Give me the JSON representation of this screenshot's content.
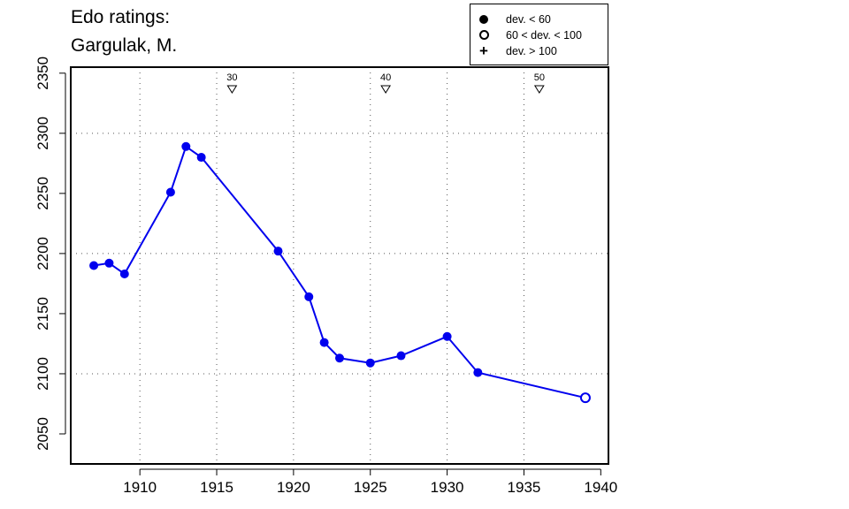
{
  "title": [
    "Edo ratings:",
    "Gargulak, M."
  ],
  "legend": [
    {
      "symbol": "filled-circle",
      "label": "dev. < 60"
    },
    {
      "symbol": "open-circle",
      "label": "60 < dev. < 100"
    },
    {
      "symbol": "plus",
      "label": "dev. > 100"
    }
  ],
  "chart_data": {
    "type": "line",
    "title": "Edo ratings: Gargulak, M.",
    "xlabel": "",
    "ylabel": "",
    "xlim": [
      1905.5,
      1940.5
    ],
    "ylim": [
      2025,
      2355
    ],
    "x_ticks": [
      1910,
      1915,
      1920,
      1925,
      1930,
      1935,
      1940
    ],
    "y_ticks": [
      2050,
      2100,
      2150,
      2200,
      2250,
      2300,
      2350
    ],
    "x_grid": [
      1910,
      1915,
      1920,
      1925,
      1930,
      1935
    ],
    "y_grid": [
      2100,
      2200,
      2300
    ],
    "grid": true,
    "line_color": "#0000ee",
    "series": [
      {
        "points": [
          {
            "x": 1907,
            "y": 2190,
            "dev": "low"
          },
          {
            "x": 1908,
            "y": 2192,
            "dev": "low"
          },
          {
            "x": 1909,
            "y": 2183,
            "dev": "low"
          },
          {
            "x": 1912,
            "y": 2251,
            "dev": "low"
          },
          {
            "x": 1913,
            "y": 2289,
            "dev": "low"
          },
          {
            "x": 1914,
            "y": 2280,
            "dev": "low"
          },
          {
            "x": 1919,
            "y": 2202,
            "dev": "low"
          },
          {
            "x": 1921,
            "y": 2164,
            "dev": "low"
          },
          {
            "x": 1922,
            "y": 2126,
            "dev": "low"
          },
          {
            "x": 1923,
            "y": 2113,
            "dev": "low"
          },
          {
            "x": 1925,
            "y": 2109,
            "dev": "low"
          },
          {
            "x": 1927,
            "y": 2115,
            "dev": "low"
          },
          {
            "x": 1930,
            "y": 2131,
            "dev": "low"
          },
          {
            "x": 1932,
            "y": 2101,
            "dev": "low"
          },
          {
            "x": 1939,
            "y": 2080,
            "dev": "mid"
          }
        ]
      }
    ],
    "age_markers": [
      {
        "x": 1916,
        "label": "30"
      },
      {
        "x": 1926,
        "label": "40"
      },
      {
        "x": 1936,
        "label": "50"
      }
    ]
  }
}
